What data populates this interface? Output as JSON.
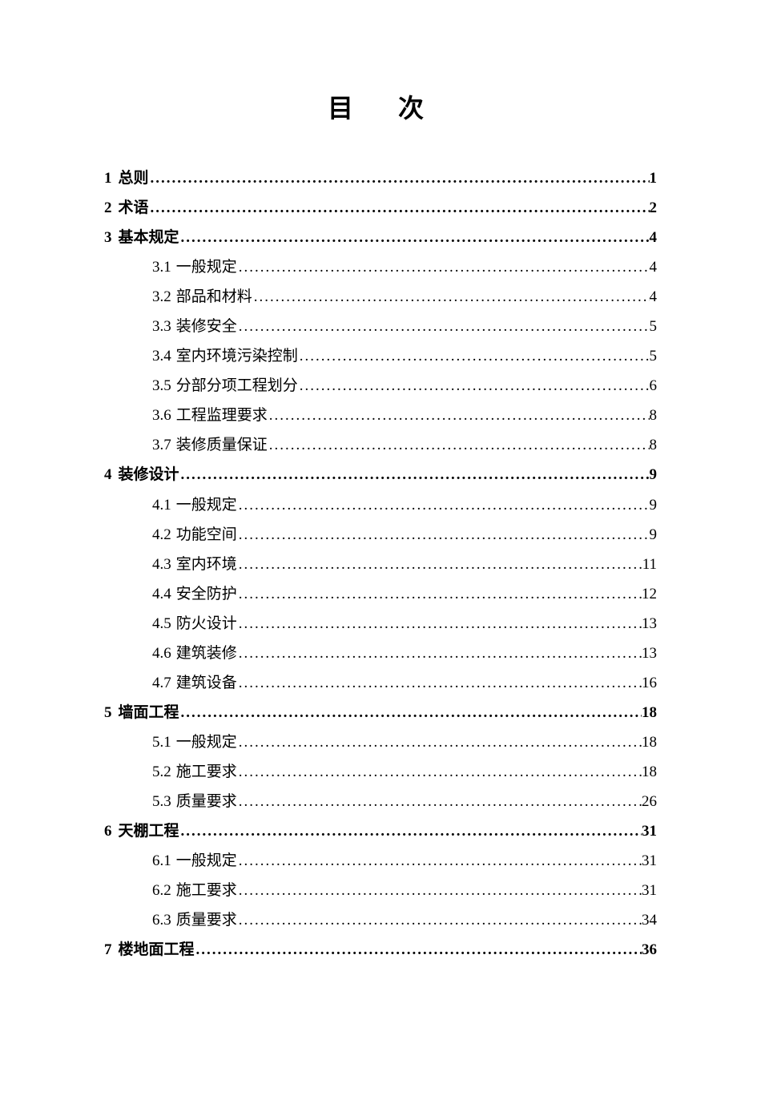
{
  "title": "目　次",
  "entries": [
    {
      "level": 1,
      "num": "1",
      "label": "总则",
      "page": "1"
    },
    {
      "level": 1,
      "num": "2",
      "label": "术语",
      "page": "2"
    },
    {
      "level": 1,
      "num": "3",
      "label": "基本规定",
      "page": "4"
    },
    {
      "level": 2,
      "num": "3.1",
      "label": "一般规定",
      "page": "4"
    },
    {
      "level": 2,
      "num": "3.2",
      "label": "部品和材料",
      "page": "4"
    },
    {
      "level": 2,
      "num": "3.3",
      "label": "装修安全",
      "page": "5"
    },
    {
      "level": 2,
      "num": "3.4",
      "label": "室内环境污染控制",
      "page": "5"
    },
    {
      "level": 2,
      "num": "3.5",
      "label": "分部分项工程划分",
      "page": "6"
    },
    {
      "level": 2,
      "num": "3.6",
      "label": "工程监理要求",
      "page": "8"
    },
    {
      "level": 2,
      "num": "3.7",
      "label": "装修质量保证",
      "page": "8"
    },
    {
      "level": 1,
      "num": "4",
      "label": "装修设计",
      "page": "9"
    },
    {
      "level": 2,
      "num": "4.1",
      "label": "一般规定",
      "page": "9"
    },
    {
      "level": 2,
      "num": "4.2",
      "label": "功能空间",
      "page": "9"
    },
    {
      "level": 2,
      "num": "4.3",
      "label": "室内环境",
      "page": "11"
    },
    {
      "level": 2,
      "num": "4.4",
      "label": "安全防护",
      "page": "12"
    },
    {
      "level": 2,
      "num": "4.5",
      "label": "防火设计",
      "page": "13"
    },
    {
      "level": 2,
      "num": "4.6",
      "label": "建筑装修",
      "page": "13"
    },
    {
      "level": 2,
      "num": "4.7",
      "label": "建筑设备",
      "page": "16"
    },
    {
      "level": 1,
      "num": "5",
      "label": "墙面工程",
      "page": "18"
    },
    {
      "level": 2,
      "num": "5.1",
      "label": "一般规定",
      "page": "18"
    },
    {
      "level": 2,
      "num": "5.2",
      "label": "施工要求",
      "page": "18"
    },
    {
      "level": 2,
      "num": "5.3",
      "label": "质量要求",
      "page": "26"
    },
    {
      "level": 1,
      "num": "6",
      "label": "天棚工程",
      "page": "31"
    },
    {
      "level": 2,
      "num": "6.1",
      "label": "一般规定",
      "page": "31"
    },
    {
      "level": 2,
      "num": "6.2",
      "label": "施工要求",
      "page": "31"
    },
    {
      "level": 2,
      "num": "6.3",
      "label": "质量要求",
      "page": "34"
    },
    {
      "level": 1,
      "num": "7",
      "label": "楼地面工程",
      "page": "36"
    }
  ]
}
